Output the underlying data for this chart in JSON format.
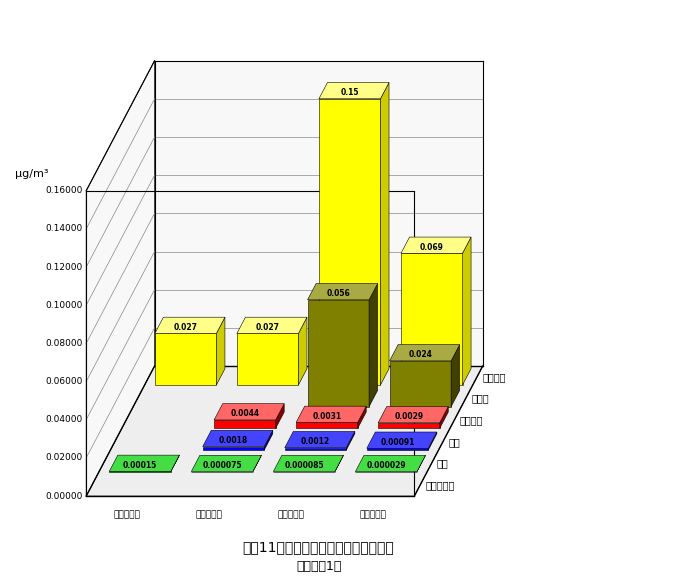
{
  "title": "平成11年度有害大気汚染物質年平均値",
  "subtitle": "（金属類1）",
  "ylabel": "μg/m³",
  "ylim_max": 0.16,
  "ytick_vals": [
    0.0,
    0.02,
    0.04,
    0.06,
    0.08,
    0.1,
    0.12,
    0.14,
    0.16
  ],
  "ytick_labels": [
    "0.00000",
    "0.02000",
    "0.04000",
    "0.06000",
    "0.08000",
    "0.10000",
    "0.12000",
    "0.14000",
    "0.16000"
  ],
  "x_labels": [
    "池上測定所",
    "大師測定所",
    "中原測定所",
    "多摩測定所"
  ],
  "depth_labels_right": [
    "マンガン",
    "クロム",
    "ニッケル",
    "水銀"
  ],
  "depth_labels_left": [
    "ヒ素",
    "ベリリウム"
  ],
  "background": "#FFFFFF",
  "border_color": "#000000",
  "grid_color": "#888888",
  "substance_names": [
    "マンガン",
    "クロム",
    "ニッケル",
    "水銀",
    "ヒ素",
    "ベリリウム"
  ],
  "substance_colors": [
    "#FFFF00",
    "#808000",
    "#FF0000",
    "#0000FF",
    "#00BB00",
    "#FF00FF"
  ],
  "substance_dark_colors": [
    "#CCCC00",
    "#404000",
    "#880000",
    "#000088",
    "#006600",
    "#880088"
  ],
  "substance_top_colors": [
    "#FFFF88",
    "#AAAA44",
    "#FF6666",
    "#4444FF",
    "#44DD44",
    "#FF88FF"
  ],
  "values": [
    [
      0.027,
      0.027,
      0.15,
      0.069
    ],
    [
      0.0,
      0.0,
      0.056,
      0.024
    ],
    [
      0.0,
      0.0044,
      0.0031,
      0.0029
    ],
    [
      0.0,
      0.0018,
      0.0012,
      0.00091
    ],
    [
      0.00015,
      7.5e-05,
      8.5e-05,
      2.9e-05
    ],
    [
      0.0,
      0.0,
      0.0,
      0.0
    ]
  ],
  "value_labels": [
    [
      "0.027",
      "0.027",
      "0.15",
      "0.069"
    ],
    [
      "",
      "",
      "0.056",
      "0.024"
    ],
    [
      "",
      "0.0044",
      "0.0031",
      "0.0029"
    ],
    [
      "",
      "0.0018",
      "0.0012",
      "0.00091"
    ],
    [
      "0.00015",
      "0.000075",
      "0.000085",
      "0.000029"
    ],
    [
      "",
      "",
      "",
      ""
    ]
  ],
  "font_title": 10,
  "font_subtitle": 9,
  "font_axis": 7.5,
  "font_bar_label": 6.5
}
